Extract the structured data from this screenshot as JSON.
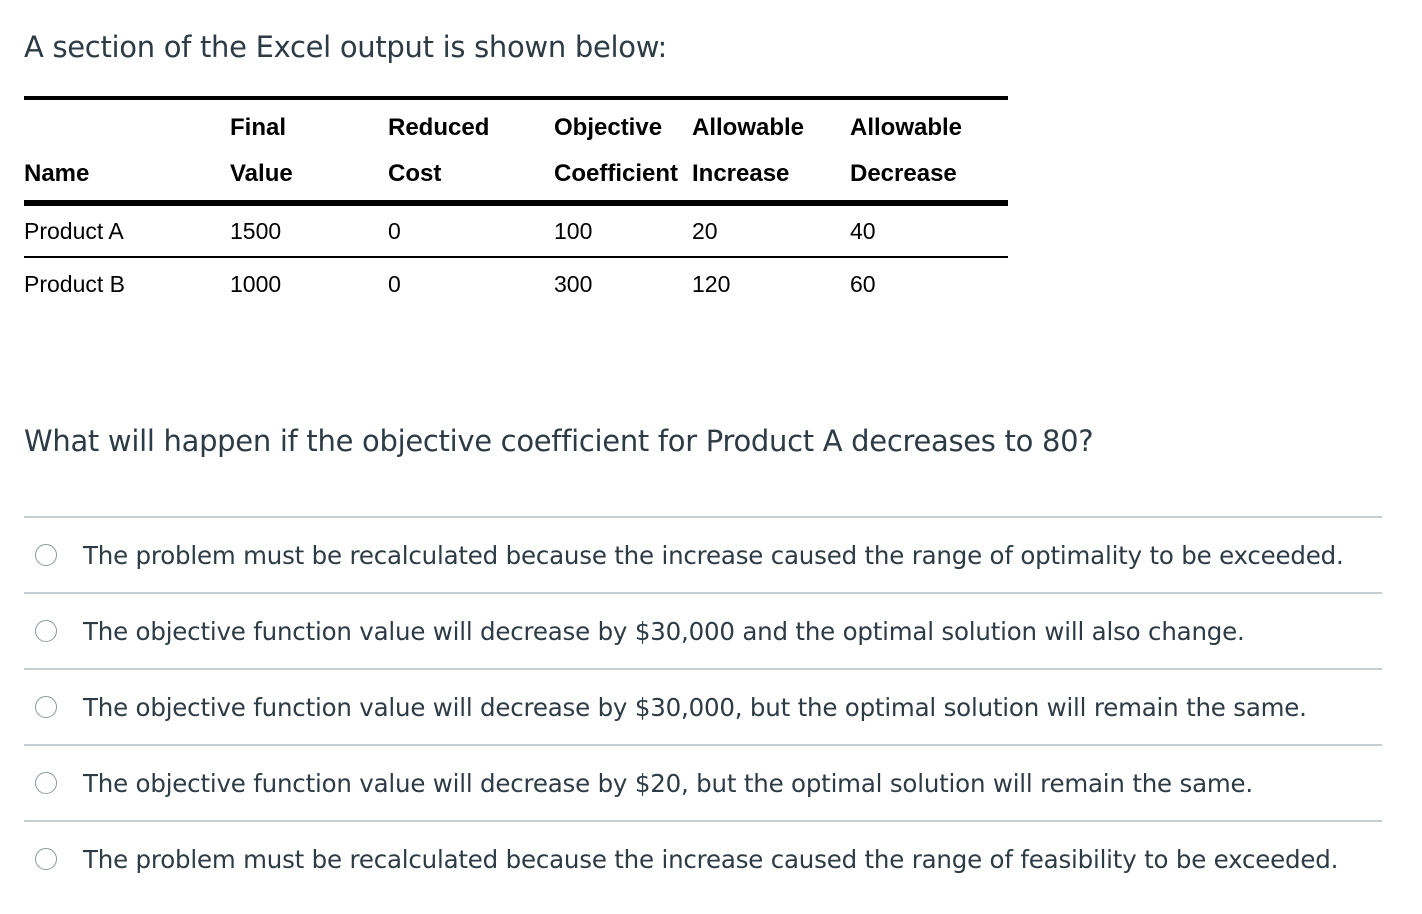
{
  "intro_text": "A section of the Excel output is shown below:",
  "table": {
    "headers": [
      {
        "line1": "",
        "line2": "Name"
      },
      {
        "line1": "Final",
        "line2": "Value"
      },
      {
        "line1": "Reduced",
        "line2": "Cost"
      },
      {
        "line1": "Objective",
        "line2": "Coefficient"
      },
      {
        "line1": "Allowable",
        "line2": "Increase"
      },
      {
        "line1": "Allowable",
        "line2": "Decrease"
      }
    ],
    "rows": [
      [
        "Product A",
        "1500",
        "0",
        "100",
        "20",
        "40"
      ],
      [
        "Product B",
        "1000",
        "0",
        "300",
        "120",
        "60"
      ]
    ]
  },
  "question_text": "What will happen if the objective coefficient for Product A decreases to 80?",
  "answers": [
    {
      "label": "The problem must be recalculated because the increase caused the range of optimality to be exceeded."
    },
    {
      "label": "The objective function value will decrease by $30,000 and the optimal solution will also change."
    },
    {
      "label": "The objective function value will decrease by $30,000, but the optimal solution will remain the same."
    },
    {
      "label": "The objective function value will decrease by $20, but the optimal solution will remain the same."
    },
    {
      "label": "The problem must be recalculated because the increase caused the range of feasibility to be exceeded."
    }
  ]
}
